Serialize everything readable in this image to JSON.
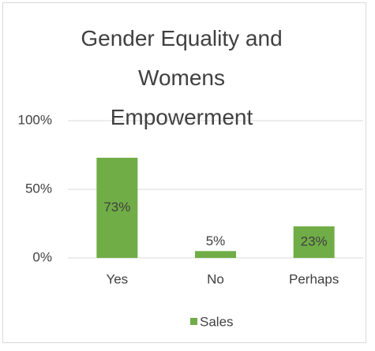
{
  "chart_data": {
    "type": "bar",
    "title": "Gender Equality and Womens Empowerment",
    "categories": [
      "Yes",
      "No",
      "Perhaps"
    ],
    "series": [
      {
        "name": "Sales",
        "color": "#70ad47",
        "values": [
          73,
          5,
          23
        ],
        "value_labels": [
          "73%",
          "5%",
          "23%"
        ]
      }
    ],
    "ylim": [
      0,
      100
    ],
    "yticks": [
      {
        "value": 0,
        "label": "0%"
      },
      {
        "value": 50,
        "label": "50%"
      },
      {
        "value": 100,
        "label": "100%"
      }
    ],
    "grid": true,
    "legend": "bottom"
  }
}
